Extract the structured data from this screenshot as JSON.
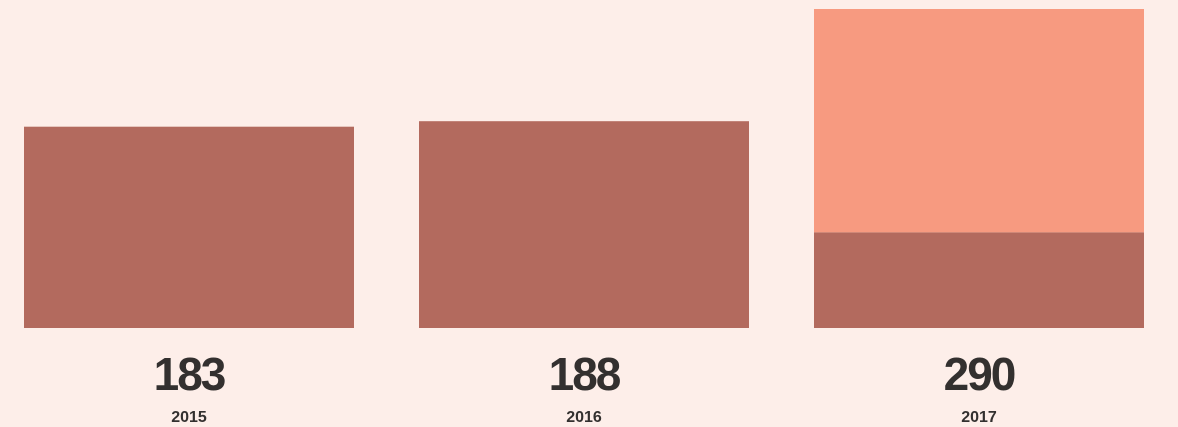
{
  "chart_data": {
    "type": "stacked_bar",
    "categories": [
      "2015",
      "2016",
      "2017"
    ],
    "series": [
      {
        "color": "#b36a5e",
        "values": [
          183,
          188,
          87
        ]
      },
      {
        "color": "#f79a80",
        "values": [
          null,
          null,
          203
        ]
      }
    ],
    "totals": [
      183,
      188,
      290
    ]
  }
}
